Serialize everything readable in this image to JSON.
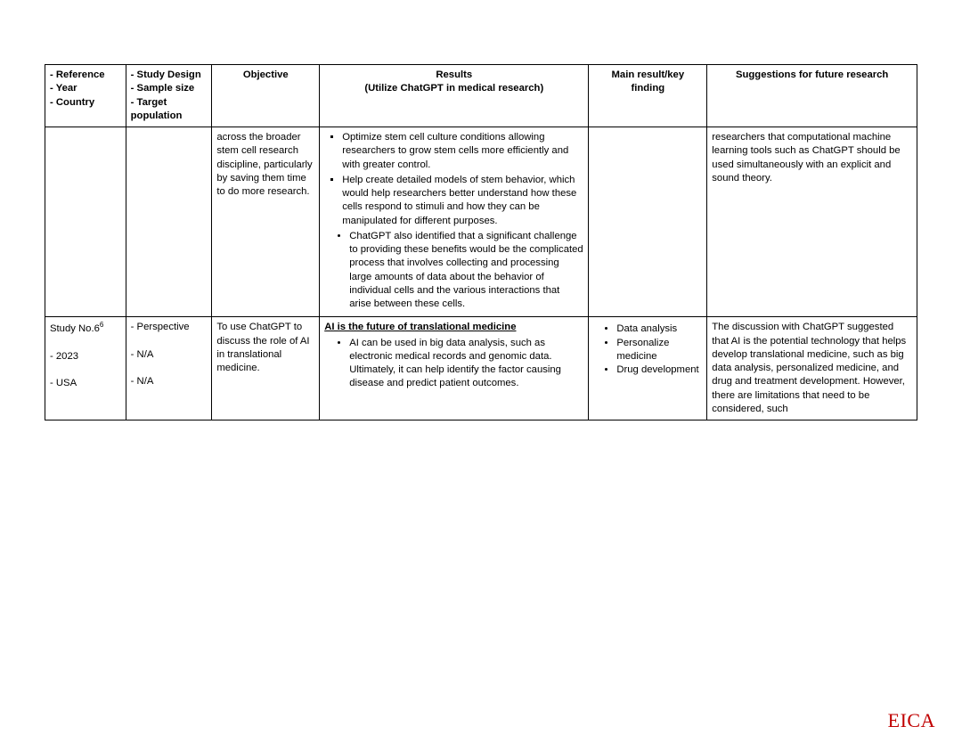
{
  "headers": {
    "ref_lines": [
      "- Reference",
      "- Year",
      "- Country"
    ],
    "design_lines": [
      "- Study Design",
      "- Sample size",
      "- Target population"
    ],
    "objective": "Objective",
    "results_lines": [
      "Results",
      "(Utilize ChatGPT in medical research)"
    ],
    "finding": "Main result/key finding",
    "suggestions": "Suggestions for future research"
  },
  "row1": {
    "objective": "across the broader stem cell research discipline, particularly by saving them time to do more research.",
    "results": {
      "inner": [
        "Optimize stem cell culture conditions allowing researchers to grow stem cells more efficiently and with greater control.",
        "Help create detailed models of stem behavior, which would help researchers better understand how these cells respond to stimuli and how they can be manipulated for different purposes."
      ],
      "outer_last": "ChatGPT also identified that a significant challenge to providing these benefits would be the complicated process that involves collecting and processing large amounts of data about the behavior of individual cells and the various interactions that arise between these cells."
    },
    "suggestion": "researchers that computational machine learning tools such as ChatGPT should be used simultaneously with an explicit and sound theory."
  },
  "row2": {
    "ref_study": "Study No.6",
    "ref_sup": "6",
    "ref_year": "- 2023",
    "ref_country": "- USA",
    "design": [
      "- Perspective",
      "- N/A",
      "- N/A"
    ],
    "objective": "To use ChatGPT to discuss the role of AI in translational medicine.",
    "results_title": "AI is the future of translational medicine",
    "results_bullet": "AI can be used in big data analysis, such as electronic medical records and genomic data. Ultimately, it can help identify the factor causing disease and predict patient outcomes.",
    "findings": [
      "Data analysis",
      "Personalize medicine",
      "Drug development"
    ],
    "suggestion": "The discussion with ChatGPT suggested that AI is the potential technology that helps develop translational medicine, such as big data analysis, personalized medicine, and drug and treatment development. However, there are limitations that need to be considered, such"
  },
  "footer": "EICA"
}
